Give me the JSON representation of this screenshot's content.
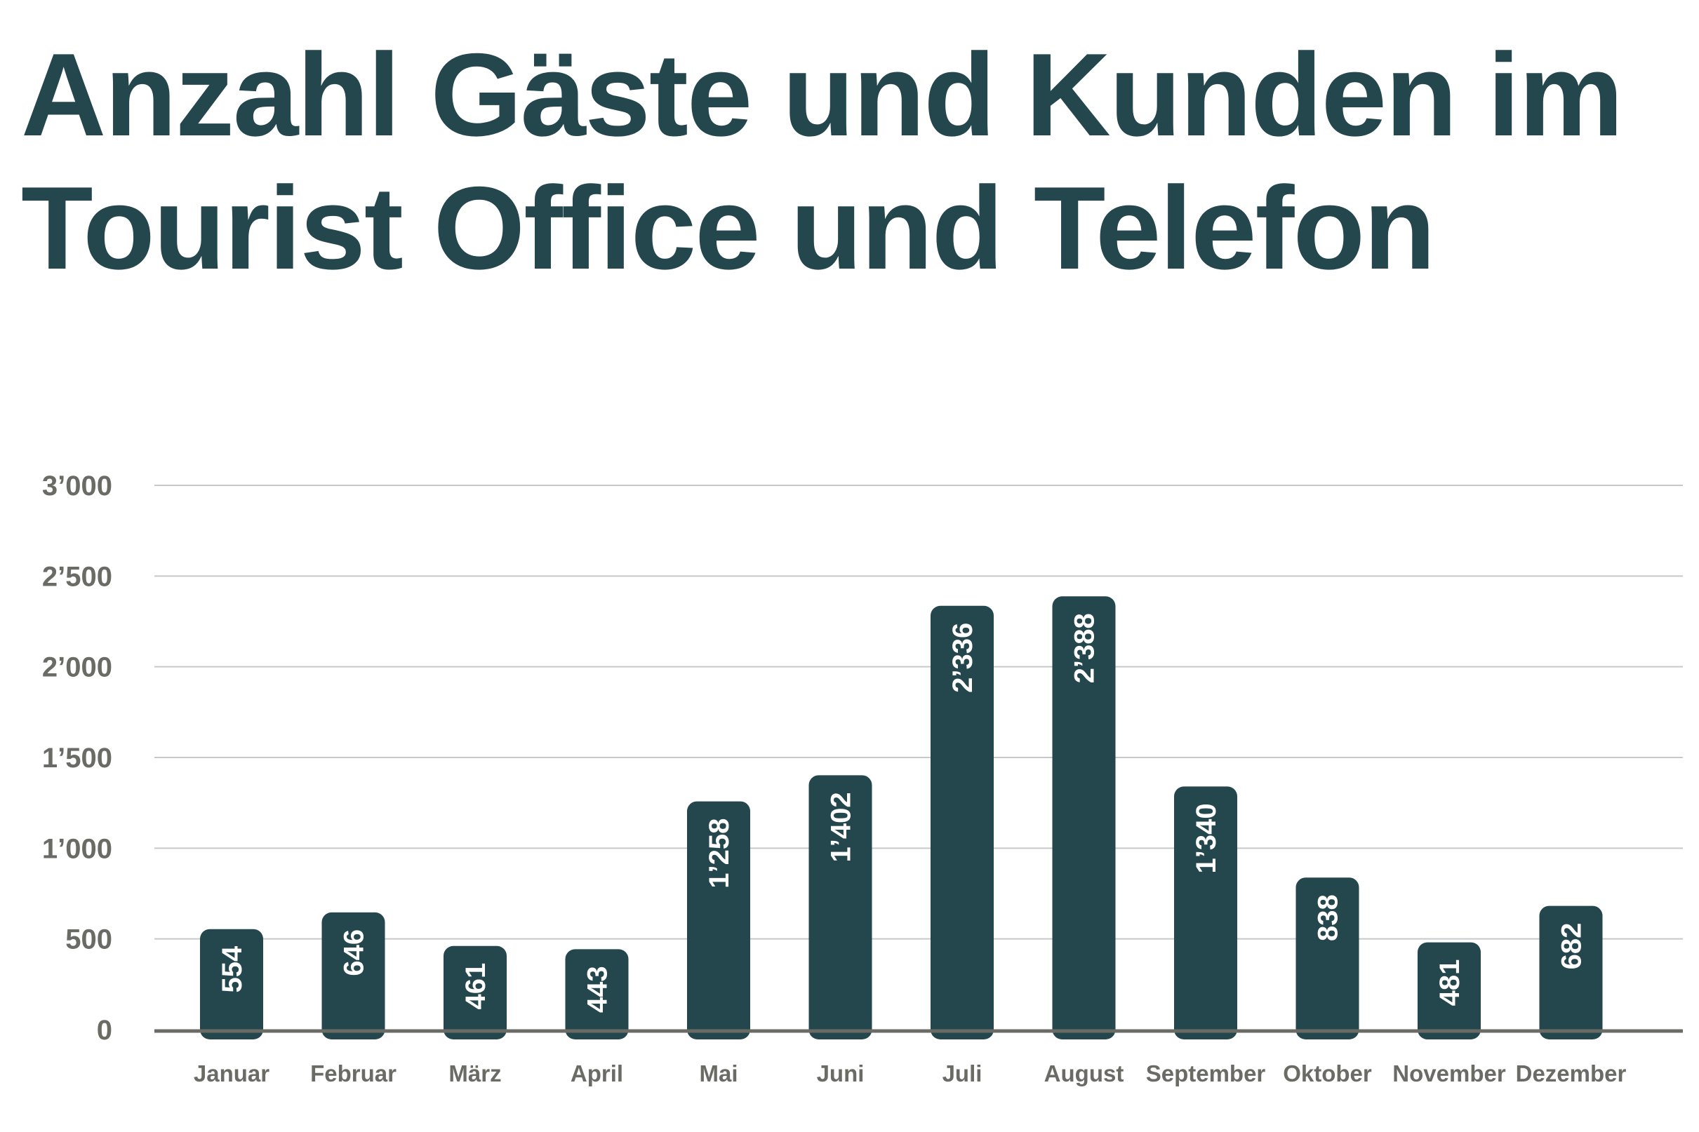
{
  "chart_data": {
    "type": "bar",
    "title_lines": [
      "Anzahl Gäste und Kunden im",
      "Tourist Office und Telefon"
    ],
    "xlabel": "",
    "ylabel": "",
    "categories": [
      "Januar",
      "Februar",
      "März",
      "April",
      "Mai",
      "Juni",
      "Juli",
      "August",
      "September",
      "Oktober",
      "November",
      "Dezember"
    ],
    "values": [
      554,
      646,
      461,
      443,
      1258,
      1402,
      2336,
      2388,
      1340,
      838,
      481,
      682
    ],
    "value_labels": [
      "554",
      "646",
      "461",
      "443",
      "1’258",
      "1’402",
      "2’336",
      "2’388",
      "1’340",
      "838",
      "481",
      "682"
    ],
    "ylim": [
      0,
      3000
    ],
    "yticks": [
      0,
      500,
      1000,
      1500,
      2000,
      2500,
      3000
    ],
    "ytick_labels": [
      "0",
      "500",
      "1’000",
      "1’500",
      "2’000",
      "2’500",
      "3’000"
    ],
    "grid": true,
    "legend": "none",
    "bar_color": "#24464d",
    "text_color": "#6b6b66",
    "gridline_color": "#c8c8c8",
    "baseline_color": "#6b6b66"
  }
}
